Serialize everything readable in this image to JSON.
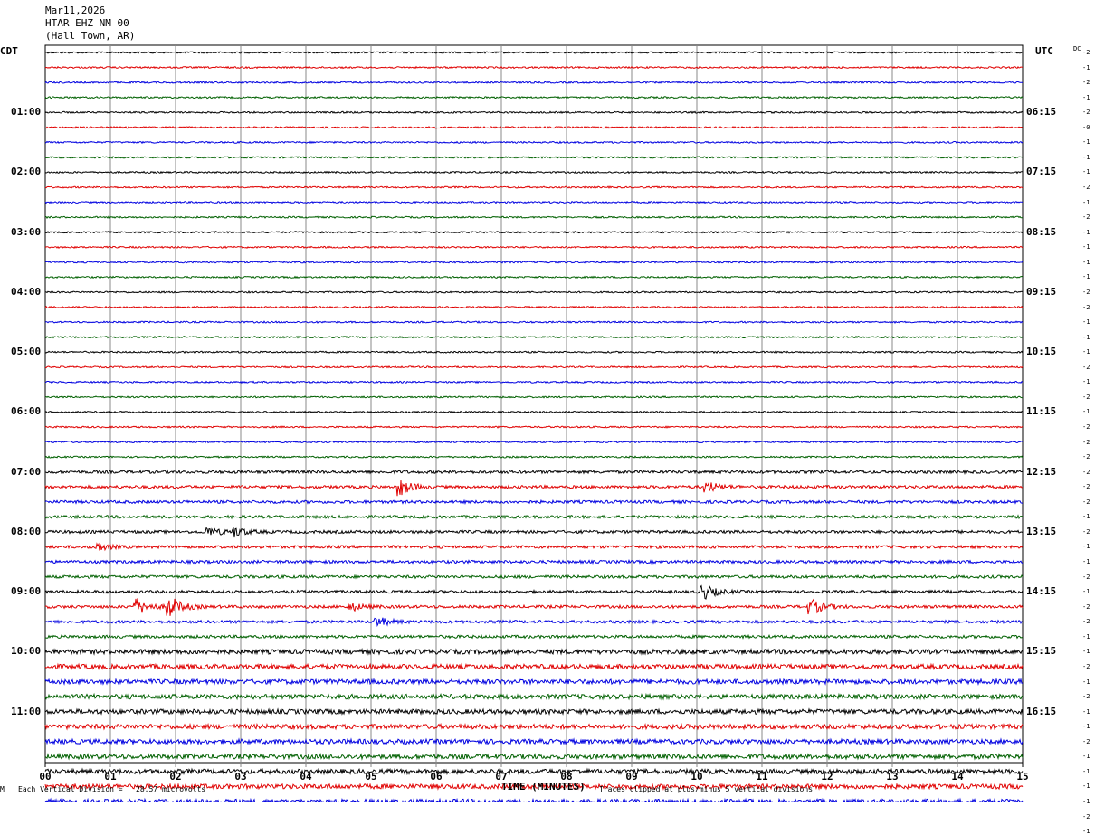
{
  "header": {
    "date": "Mar11,2026",
    "station": "HTAR EHZ NM 00",
    "location": "(Hall Town, AR)"
  },
  "axis": {
    "left_title": "CDT",
    "right_title": "UTC",
    "dc_label": "DC",
    "xlabel": "TIME (MINUTES)",
    "footer_left": "Each Vertical Division =   28.57 microvolts",
    "footer_right": "Traces clipped at plus/minus 5 vertical divisions",
    "corner_mark": "M"
  },
  "chart_data": {
    "type": "line",
    "title": "",
    "x_ticks": [
      "00",
      "01",
      "02",
      "03",
      "04",
      "05",
      "06",
      "07",
      "08",
      "09",
      "10",
      "11",
      "12",
      "13",
      "14",
      "15"
    ],
    "xlim": [
      0,
      15
    ],
    "left_hour_labels": [
      "01:00",
      "02:00",
      "03:00",
      "04:00",
      "05:00",
      "06:00",
      "07:00",
      "08:00",
      "09:00",
      "10:00",
      "11:00"
    ],
    "right_hour_labels": [
      "06:15",
      "07:15",
      "08:15",
      "09:15",
      "10:15",
      "11:15",
      "12:15",
      "13:15",
      "14:15",
      "15:15",
      "16:15"
    ],
    "trace_colors": [
      "#000000",
      "#e00000",
      "#0000e0",
      "#006000"
    ],
    "dc_offsets": [
      "-2",
      "-1",
      "-2",
      "-1",
      "-2",
      "-0",
      "-1",
      "-1",
      "-1",
      "-2",
      "-1",
      "-2",
      "-1",
      "-1",
      "-1",
      "-1",
      "-2",
      "-2",
      "-1",
      "-1",
      "-1",
      "-2",
      "-1",
      "-2",
      "-1",
      "-2",
      "-2",
      "-2",
      "-2",
      "-2",
      "-2",
      "-1",
      "-2",
      "-1",
      "-1",
      "-2",
      "-1",
      "-2",
      "-2",
      "-1",
      "-1",
      "-2",
      "-1",
      "-2",
      "-1",
      "-1",
      "-2",
      "-1",
      "-1",
      "-1",
      "-1",
      "-2",
      "-1"
    ],
    "events": [
      {
        "row": 29,
        "minute": 5.45,
        "amp": 9
      },
      {
        "row": 29,
        "minute": 10.15,
        "amp": 6
      },
      {
        "row": 32,
        "minute": 2.5,
        "amp": 5
      },
      {
        "row": 32,
        "minute": 2.9,
        "amp": 5
      },
      {
        "row": 33,
        "minute": 0.8,
        "amp": 4
      },
      {
        "row": 36,
        "minute": 10.1,
        "amp": 8
      },
      {
        "row": 37,
        "minute": 1.4,
        "amp": 9
      },
      {
        "row": 37,
        "minute": 1.9,
        "amp": 12
      },
      {
        "row": 37,
        "minute": 11.75,
        "amp": 9
      },
      {
        "row": 37,
        "minute": 4.7,
        "amp": 4
      },
      {
        "row": 38,
        "minute": 5.1,
        "amp": 5
      }
    ]
  }
}
